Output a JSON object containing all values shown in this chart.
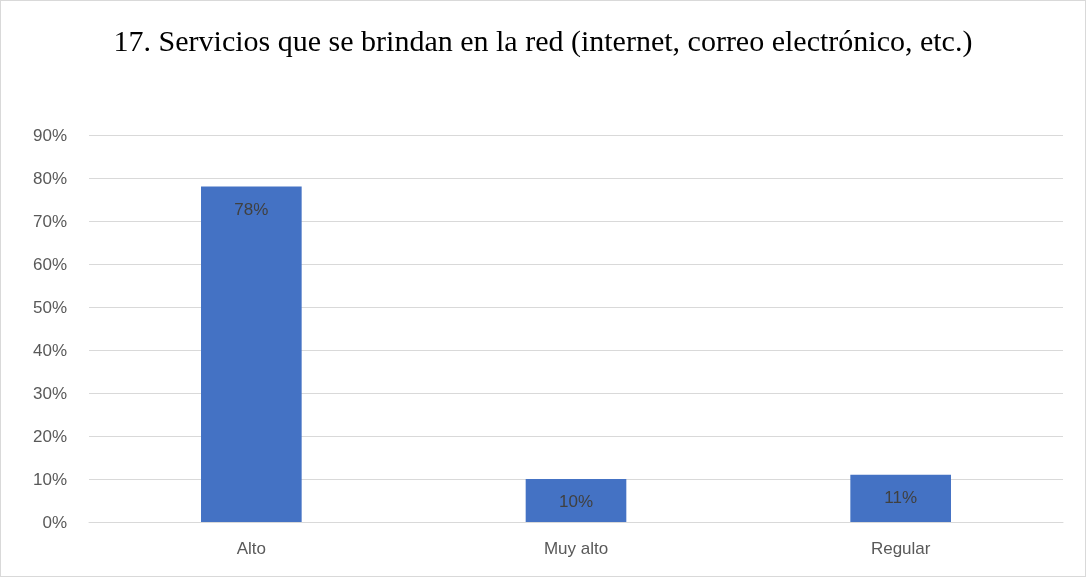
{
  "chart_data": {
    "type": "bar",
    "title": "17. Servicios que se brindan en la red (internet, correo electrónico, etc.)",
    "categories": [
      "Alto",
      "Muy alto",
      "Regular"
    ],
    "values": [
      78,
      10,
      11
    ],
    "value_labels": [
      "78%",
      "10%",
      "11%"
    ],
    "color": "#4472c4",
    "ylim": [
      0,
      90
    ],
    "yticks": [
      {
        "value": 0,
        "label": "0%"
      },
      {
        "value": 10,
        "label": "10%"
      },
      {
        "value": 20,
        "label": "20%"
      },
      {
        "value": 30,
        "label": "30%"
      },
      {
        "value": 40,
        "label": "40%"
      },
      {
        "value": 50,
        "label": "50%"
      },
      {
        "value": 60,
        "label": "60%"
      },
      {
        "value": 70,
        "label": "70%"
      },
      {
        "value": 80,
        "label": "80%"
      },
      {
        "value": 90,
        "label": "90%"
      }
    ],
    "grid": true
  }
}
